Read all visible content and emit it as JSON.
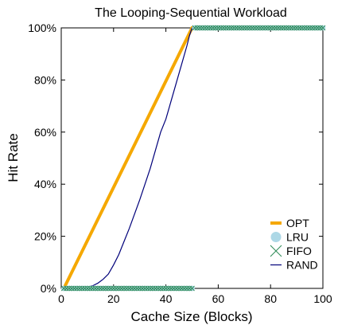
{
  "chart_data": {
    "type": "line",
    "title": "The Looping-Sequential Workload",
    "xlabel": "Cache Size (Blocks)",
    "ylabel": "Hit Rate",
    "xlim": [
      0,
      100
    ],
    "ylim": [
      0,
      100
    ],
    "x_ticks": [
      0,
      20,
      40,
      60,
      80,
      100
    ],
    "y_ticks": [
      0,
      20,
      40,
      60,
      80,
      100
    ],
    "x_tick_labels": [
      "0",
      "20",
      "40",
      "60",
      "80",
      "100"
    ],
    "y_tick_labels": [
      "0%",
      "20%",
      "40%",
      "60%",
      "80%",
      "100%"
    ],
    "grid": false,
    "legend_position": "bottom-right",
    "series": [
      {
        "name": "OPT",
        "color": "#f5a800",
        "style": "thick-line",
        "x": [
          1,
          50,
          100
        ],
        "y": [
          0,
          100,
          100
        ]
      },
      {
        "name": "LRU",
        "color": "#add8e6",
        "style": "dot-markers",
        "x": [
          1,
          2,
          3,
          4,
          5,
          6,
          7,
          8,
          9,
          10,
          11,
          12,
          13,
          14,
          15,
          16,
          17,
          18,
          19,
          20,
          21,
          22,
          23,
          24,
          25,
          26,
          27,
          28,
          29,
          30,
          31,
          32,
          33,
          34,
          35,
          36,
          37,
          38,
          39,
          40,
          41,
          42,
          43,
          44,
          45,
          46,
          47,
          48,
          49,
          50,
          51,
          52,
          53,
          54,
          55,
          56,
          57,
          58,
          59,
          60,
          61,
          62,
          63,
          64,
          65,
          66,
          67,
          68,
          69,
          70,
          71,
          72,
          73,
          74,
          75,
          76,
          77,
          78,
          79,
          80,
          81,
          82,
          83,
          84,
          85,
          86,
          87,
          88,
          89,
          90,
          91,
          92,
          93,
          94,
          95,
          96,
          97,
          98,
          99,
          100
        ],
        "y": [
          0,
          0,
          0,
          0,
          0,
          0,
          0,
          0,
          0,
          0,
          0,
          0,
          0,
          0,
          0,
          0,
          0,
          0,
          0,
          0,
          0,
          0,
          0,
          0,
          0,
          0,
          0,
          0,
          0,
          0,
          0,
          0,
          0,
          0,
          0,
          0,
          0,
          0,
          0,
          0,
          0,
          0,
          0,
          0,
          0,
          0,
          0,
          0,
          0,
          0,
          100,
          100,
          100,
          100,
          100,
          100,
          100,
          100,
          100,
          100,
          100,
          100,
          100,
          100,
          100,
          100,
          100,
          100,
          100,
          100,
          100,
          100,
          100,
          100,
          100,
          100,
          100,
          100,
          100,
          100,
          100,
          100,
          100,
          100,
          100,
          100,
          100,
          100,
          100,
          100,
          100,
          100,
          100,
          100,
          100,
          100,
          100,
          100,
          100,
          100
        ]
      },
      {
        "name": "FIFO",
        "color": "#2e8b57",
        "style": "x-markers",
        "x": [
          1,
          2,
          3,
          4,
          5,
          6,
          7,
          8,
          9,
          10,
          11,
          12,
          13,
          14,
          15,
          16,
          17,
          18,
          19,
          20,
          21,
          22,
          23,
          24,
          25,
          26,
          27,
          28,
          29,
          30,
          31,
          32,
          33,
          34,
          35,
          36,
          37,
          38,
          39,
          40,
          41,
          42,
          43,
          44,
          45,
          46,
          47,
          48,
          49,
          50,
          51,
          52,
          53,
          54,
          55,
          56,
          57,
          58,
          59,
          60,
          61,
          62,
          63,
          64,
          65,
          66,
          67,
          68,
          69,
          70,
          71,
          72,
          73,
          74,
          75,
          76,
          77,
          78,
          79,
          80,
          81,
          82,
          83,
          84,
          85,
          86,
          87,
          88,
          89,
          90,
          91,
          92,
          93,
          94,
          95,
          96,
          97,
          98,
          99,
          100
        ],
        "y": [
          0,
          0,
          0,
          0,
          0,
          0,
          0,
          0,
          0,
          0,
          0,
          0,
          0,
          0,
          0,
          0,
          0,
          0,
          0,
          0,
          0,
          0,
          0,
          0,
          0,
          0,
          0,
          0,
          0,
          0,
          0,
          0,
          0,
          0,
          0,
          0,
          0,
          0,
          0,
          0,
          0,
          0,
          0,
          0,
          0,
          0,
          0,
          0,
          0,
          0,
          100,
          100,
          100,
          100,
          100,
          100,
          100,
          100,
          100,
          100,
          100,
          100,
          100,
          100,
          100,
          100,
          100,
          100,
          100,
          100,
          100,
          100,
          100,
          100,
          100,
          100,
          100,
          100,
          100,
          100,
          100,
          100,
          100,
          100,
          100,
          100,
          100,
          100,
          100,
          100,
          100,
          100,
          100,
          100,
          100,
          100,
          100,
          100,
          100,
          100
        ]
      },
      {
        "name": "RAND",
        "color": "#00007a",
        "style": "thin-line",
        "x": [
          1,
          5,
          8,
          10,
          12,
          14,
          16,
          18,
          20,
          22,
          24,
          26,
          28,
          30,
          32,
          34,
          36,
          38,
          40,
          42,
          44,
          46,
          48,
          49,
          50,
          100
        ],
        "y": [
          0,
          0,
          0,
          0.5,
          1,
          2,
          3.5,
          5.5,
          9,
          13,
          18,
          23,
          28.5,
          34,
          40,
          46,
          53,
          60,
          65,
          72,
          79,
          86,
          93,
          97,
          100,
          100
        ]
      }
    ]
  }
}
